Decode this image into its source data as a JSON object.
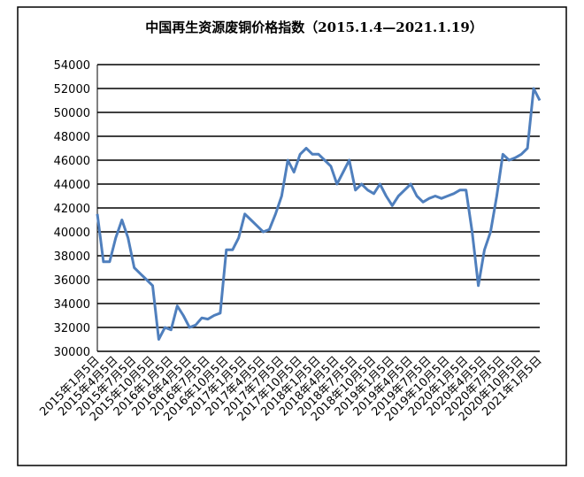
{
  "chart_data": {
    "type": "line",
    "title": "中国再生资源废铜价格指数（2015.1.4—2021.1.19）",
    "categories": [
      "2015年1月5日",
      null,
      null,
      "2015年4月5日",
      null,
      null,
      "2015年7月5日",
      null,
      null,
      "2015年10月5日",
      null,
      null,
      "2016年1月5日",
      null,
      null,
      "2016年4月5日",
      null,
      null,
      "2016年7月5日",
      null,
      null,
      "2016年10月5日",
      null,
      null,
      "2017年1月5日",
      null,
      null,
      "2017年4月5日",
      null,
      null,
      "2017年7月5日",
      null,
      null,
      "2017年10月5日",
      null,
      null,
      "2018年1月5日",
      null,
      null,
      "2018年4月5日",
      null,
      null,
      "2018年7月5日",
      null,
      null,
      "2018年10月5日",
      null,
      null,
      "2019年1月5日",
      null,
      null,
      "2019年4月5日",
      null,
      null,
      "2019年7月5日",
      null,
      null,
      "2019年10月5日",
      null,
      null,
      "2020年1月5日",
      null,
      null,
      "2020年4月5日",
      null,
      null,
      "2020年7月5日",
      null,
      null,
      "2020年10月5日",
      null,
      null,
      "2021年1月5日"
    ],
    "values": [
      41500,
      37500,
      37500,
      39500,
      41000,
      39500,
      37000,
      36500,
      36000,
      35500,
      31000,
      32000,
      31800,
      33800,
      33000,
      32000,
      32200,
      32800,
      32700,
      33000,
      33200,
      38500,
      38500,
      39500,
      41500,
      41000,
      40500,
      40000,
      40200,
      41500,
      43000,
      46000,
      45000,
      46500,
      47000,
      46500,
      46500,
      46000,
      45500,
      44000,
      45000,
      46000,
      43500,
      44000,
      43500,
      43200,
      44000,
      43000,
      42200,
      43000,
      43500,
      44000,
      43000,
      42500,
      42800,
      43000,
      42800,
      43000,
      43200,
      43500,
      43500,
      40000,
      35500,
      38500,
      40000,
      43000,
      46500,
      46000,
      46200,
      46500,
      47000,
      52000,
      51000
    ],
    "color": "#4f7fbd",
    "ylim": [
      30000,
      54000
    ],
    "yticks": [
      30000,
      32000,
      34000,
      36000,
      38000,
      40000,
      42000,
      44000,
      46000,
      48000,
      50000,
      52000,
      54000
    ],
    "grid": true
  }
}
